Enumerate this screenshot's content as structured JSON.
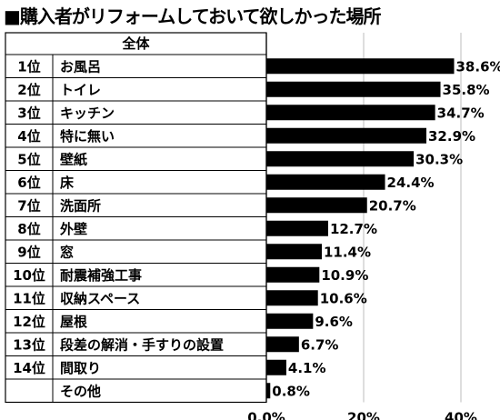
{
  "title": "■購入者がリフォームしておいて欲しかった場所",
  "chart_data": {
    "type": "bar",
    "orientation": "horizontal",
    "title": "■購入者がリフォームしておいて欲しかった場所",
    "group_header": "全体",
    "ranks": [
      "1位",
      "2位",
      "3位",
      "4位",
      "5位",
      "6位",
      "7位",
      "8位",
      "9位",
      "10位",
      "11位",
      "12位",
      "13位",
      "14位",
      ""
    ],
    "categories": [
      "お風呂",
      "トイレ",
      "キッチン",
      "特に無い",
      "壁紙",
      "床",
      "洗面所",
      "外壁",
      "窓",
      "耐震補強工事",
      "収納スペース",
      "屋根",
      "段差の解消・手すりの設置",
      "間取り",
      "その他"
    ],
    "values": [
      38.6,
      35.8,
      34.7,
      32.9,
      30.3,
      24.4,
      20.7,
      12.7,
      11.4,
      10.9,
      10.6,
      9.6,
      6.7,
      4.1,
      0.8
    ],
    "value_labels": [
      "38.6%",
      "35.8%",
      "34.7%",
      "32.9%",
      "30.3%",
      "24.4%",
      "20.7%",
      "12.7%",
      "11.4%",
      "10.9%",
      "10.6%",
      "9.6%",
      "6.7%",
      "4.1%",
      "0.8%"
    ],
    "x_ticks": [
      0,
      20,
      40
    ],
    "x_tick_labels": [
      "0.0%",
      "20%",
      "40%"
    ],
    "xlim": [
      0,
      40
    ],
    "grid": true,
    "bar_color": "#000000"
  }
}
